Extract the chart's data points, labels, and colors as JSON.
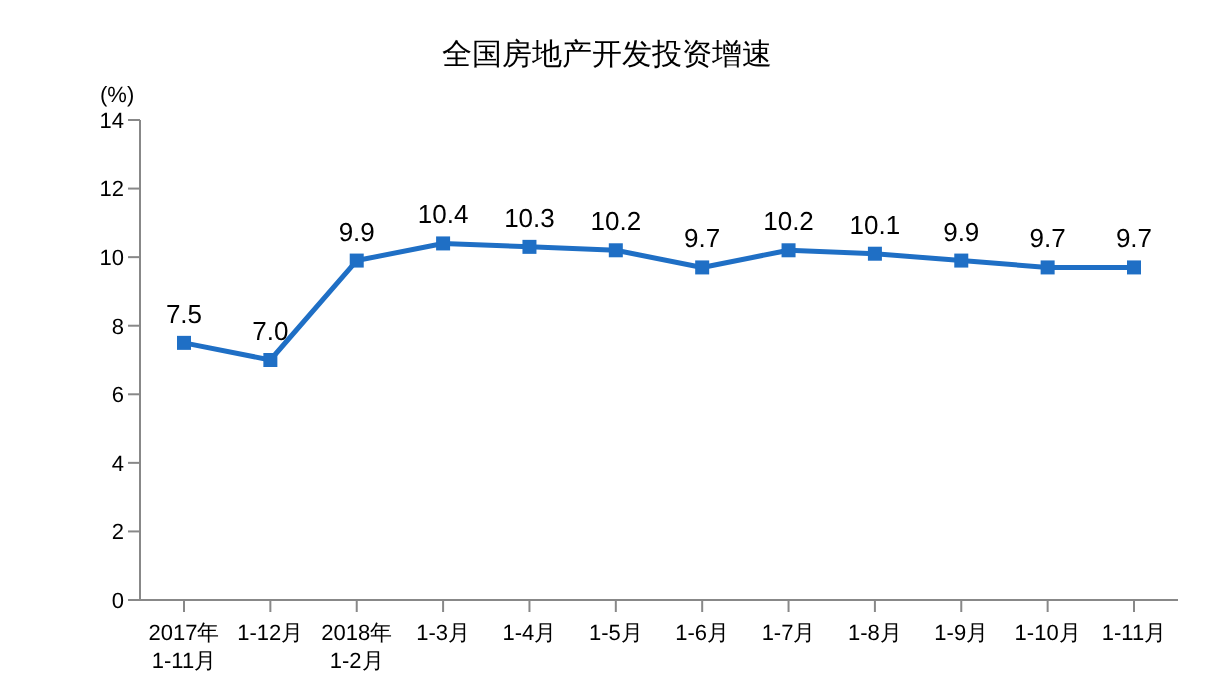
{
  "chart_data": {
    "type": "line",
    "title": "全国房地产开发投资增速",
    "ylabel": "(%)",
    "categories": [
      "2017年\n1-11月",
      "1-12月",
      "2018年\n1-2月",
      "1-3月",
      "1-4月",
      "1-5月",
      "1-6月",
      "1-7月",
      "1-8月",
      "1-9月",
      "1-10月",
      "1-11月"
    ],
    "series": [
      {
        "color": "#1f6fc5",
        "values": [
          7.5,
          7.0,
          9.9,
          10.4,
          10.3,
          10.2,
          9.7,
          10.2,
          10.1,
          9.9,
          9.7,
          9.7
        ],
        "value_labels": [
          "7.5",
          "7.0",
          "9.9",
          "10.4",
          "10.3",
          "10.2",
          "9.7",
          "10.2",
          "10.1",
          "9.9",
          "9.7",
          "9.7"
        ]
      }
    ],
    "ylim": [
      0,
      14
    ],
    "yticks": [
      0,
      2,
      4,
      6,
      8,
      10,
      12,
      14
    ],
    "grid": false,
    "legend": false,
    "marker": "square",
    "line_style": "solid"
  }
}
